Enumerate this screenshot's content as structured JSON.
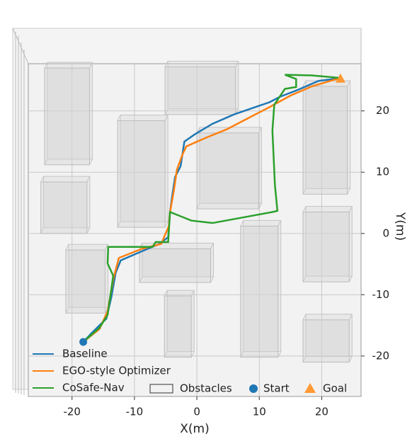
{
  "chart_data": {
    "type": "line",
    "xlabel": "X(m)",
    "ylabel": "Y(m)",
    "xlim": [
      -27,
      26.3
    ],
    "ylim": [
      -26.6,
      27.7
    ],
    "xticks": [
      -20,
      -10,
      0,
      10,
      20
    ],
    "yticks": [
      -20,
      -10,
      0,
      10,
      20
    ],
    "grid": true,
    "series": [
      {
        "name": "Baseline",
        "color": "#1f77b4",
        "x": [
          -18.2,
          -16.8,
          -14.5,
          -13.7,
          -13,
          -12.2,
          -8.8,
          -6,
          -4.6,
          -4.3,
          -4,
          -3.5,
          -2.6,
          -2,
          -0.3,
          2.5,
          5.9,
          9.3,
          11.6,
          13.3,
          16.1,
          19.5,
          22.7
        ],
        "values": [
          -17.7,
          -16.2,
          -13.9,
          -10.4,
          -6.4,
          -4.4,
          -2.9,
          -1.7,
          -0.6,
          3.5,
          5.8,
          9.2,
          11,
          15,
          16.2,
          17.9,
          19.4,
          20.6,
          21.4,
          22.3,
          23.4,
          24.9,
          25.3
        ]
      },
      {
        "name": "EGO-style Optimizer",
        "color": "#ff7f0e",
        "x": [
          -18.2,
          -15.6,
          -14.3,
          -13.4,
          -12.5,
          -8.8,
          -5.7,
          -4.5,
          -4.3,
          -3.7,
          -3.2,
          -2.3,
          -1.7,
          1.4,
          4.8,
          8.2,
          11.6,
          15,
          18.4,
          22.7
        ],
        "values": [
          -17.7,
          -15.6,
          -12.7,
          -7.5,
          -4,
          -2.5,
          -1.7,
          1.2,
          3.5,
          6.9,
          10.4,
          12.9,
          14.2,
          15.6,
          17,
          18.8,
          20.6,
          22.5,
          24,
          25.3
        ]
      },
      {
        "name": "CoSafe-Nav",
        "color": "#2ca02c",
        "x": [
          -18.2,
          -15.6,
          -14.3,
          -13.4,
          -14.3,
          -14.2,
          -7.1,
          -6.6,
          -4.6,
          -4.3,
          -0.9,
          2.5,
          12.1,
          12.9,
          12.5,
          12.1,
          12.4,
          14.1,
          15.9,
          15.9,
          14.1,
          18.4,
          22.7
        ],
        "values": [
          -17.7,
          -15.4,
          -13.3,
          -6.9,
          -4.9,
          -2.2,
          -2.2,
          -1.4,
          -1.4,
          3.5,
          2.1,
          1.7,
          3.5,
          3.7,
          7.9,
          16.8,
          21,
          23.6,
          23.9,
          25.2,
          25.9,
          25.8,
          25.4
        ]
      }
    ],
    "obstacles": {
      "name": "Obstacles",
      "boxes": [
        {
          "x": [
            -24.4,
            -17.2
          ],
          "y": [
            11.2,
            27
          ]
        },
        {
          "x": [
            -5.1,
            6.2
          ],
          "y": [
            19.4,
            27.2
          ]
        },
        {
          "x": [
            -12.7,
            -5.1
          ],
          "y": [
            1,
            18.4
          ]
        },
        {
          "x": [
            0,
            9.9
          ],
          "y": [
            4,
            16.4
          ]
        },
        {
          "x": [
            -25,
            -17.6
          ],
          "y": [
            0,
            8.4
          ]
        },
        {
          "x": [
            17,
            24.1
          ],
          "y": [
            6.4,
            24
          ]
        },
        {
          "x": [
            -21,
            -14.7
          ],
          "y": [
            -13,
            -2.7
          ]
        },
        {
          "x": [
            -9.2,
            2.2
          ],
          "y": [
            -8,
            -2.5
          ]
        },
        {
          "x": [
            7,
            13
          ],
          "y": [
            -20.2,
            1.2
          ]
        },
        {
          "x": [
            17,
            24.4
          ],
          "y": [
            -7.9,
            3.5
          ]
        },
        {
          "x": [
            -5.2,
            -0.9
          ],
          "y": [
            -20.2,
            -10.2
          ]
        },
        {
          "x": [
            17,
            24.4
          ],
          "y": [
            -21,
            -14.1
          ]
        }
      ]
    },
    "start": {
      "name": "Start",
      "color": "#1f77b4",
      "x": -18.2,
      "y": -17.7
    },
    "goal": {
      "name": "Goal",
      "color": "#ff9933",
      "x": 23,
      "y": 25.3
    }
  }
}
